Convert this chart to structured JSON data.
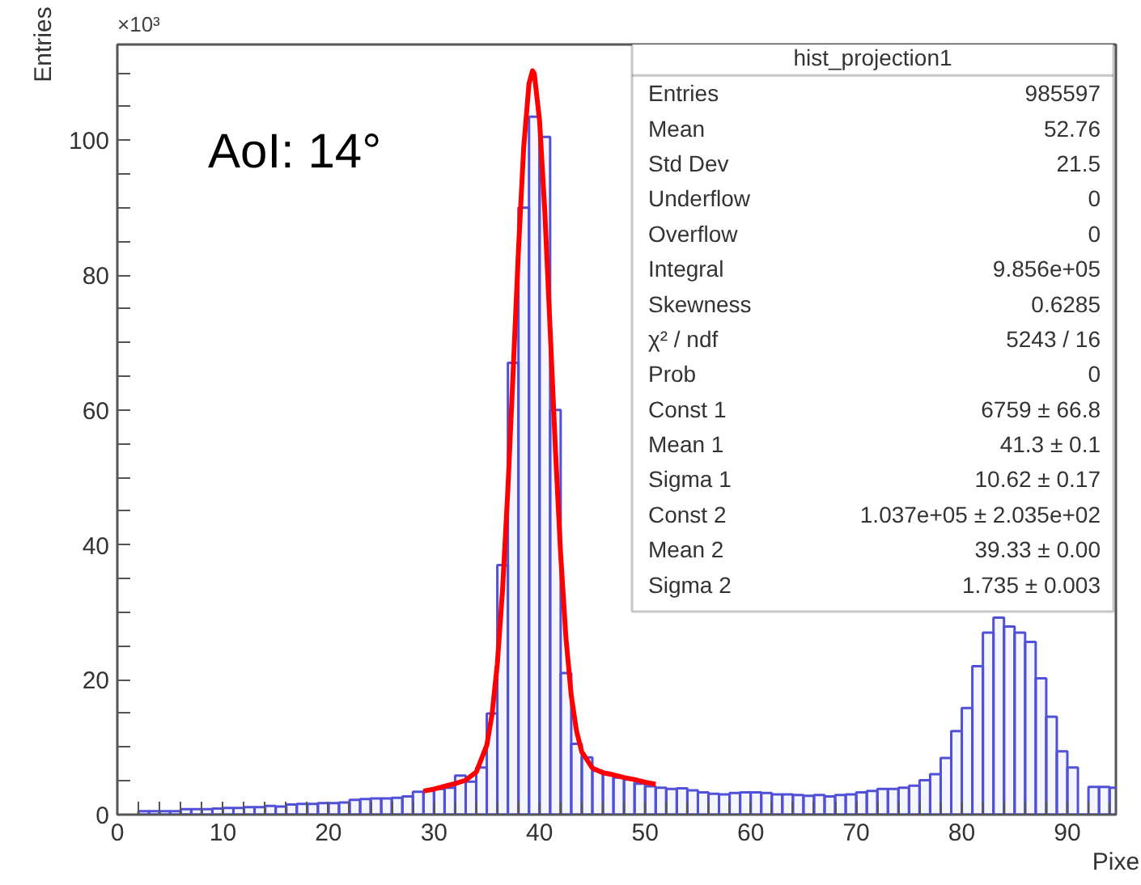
{
  "chart_data": {
    "type": "histogram",
    "xlabel": "Pixe",
    "ylabel": "Entries",
    "color": "#5050d8",
    "bins": [
      2,
      3,
      4,
      5,
      6,
      7,
      8,
      9,
      10,
      11,
      12,
      13,
      14,
      15,
      16,
      17,
      18,
      19,
      20,
      21,
      22,
      23,
      24,
      25,
      26,
      27,
      28,
      29,
      30,
      31,
      32,
      33,
      34,
      35,
      36,
      37,
      38,
      39,
      40,
      41,
      42,
      43,
      44,
      45,
      46,
      47,
      48,
      49,
      50,
      51,
      52,
      53,
      54,
      55,
      56,
      57,
      58,
      59,
      60,
      61,
      62,
      63,
      64,
      65,
      66,
      67,
      68,
      69,
      70,
      71,
      72,
      73,
      74,
      75,
      76,
      77,
      78,
      79,
      80,
      81,
      82,
      83,
      84,
      85,
      86,
      87,
      88,
      89,
      90,
      91,
      92,
      93,
      94,
      95
    ],
    "values": [
      0.5,
      0.5,
      0.5,
      0.5,
      0.8,
      0.8,
      0.8,
      0.9,
      1.0,
      1.0,
      1.1,
      1.1,
      1.3,
      1.2,
      1.5,
      1.6,
      1.6,
      1.7,
      1.7,
      1.8,
      2.2,
      2.3,
      2.4,
      2.4,
      2.5,
      2.7,
      3.4,
      3.5,
      3.8,
      4.0,
      5.8,
      4.9,
      7.0,
      15,
      37,
      67,
      90,
      103.5,
      100.5,
      60,
      21,
      10.5,
      8.5,
      6.5,
      6,
      5.5,
      5.2,
      4.6,
      4.2,
      4.0,
      3.8,
      3.9,
      3.6,
      3.3,
      3.1,
      3.0,
      3.2,
      3.3,
      3.3,
      3.2,
      3.0,
      3.0,
      2.9,
      2.8,
      2.9,
      2.7,
      2.9,
      3.0,
      3.3,
      3.5,
      3.8,
      3.8,
      4.0,
      4.3,
      5.1,
      6.0,
      8.4,
      12.4,
      15.8,
      22,
      27,
      29.2,
      27.9,
      27,
      25.6,
      20.2,
      14.5,
      9.4,
      7,
      0,
      4.1,
      4.1,
      4.0
    ],
    "series": [
      {
        "type": "line",
        "color": "#ff0000",
        "x": [
          29,
          30,
          31,
          32,
          33,
          34,
          35,
          35.5,
          36,
          36.5,
          37,
          37.5,
          38,
          38.5,
          39,
          39.33,
          39.5,
          40,
          40.5,
          41,
          41.5,
          42,
          42.5,
          43,
          43.5,
          44,
          45,
          46,
          47,
          48,
          49,
          50,
          51
        ],
        "values": [
          3.5,
          3.8,
          4.2,
          4.6,
          5.1,
          6.3,
          10.3,
          14.9,
          22.4,
          33.5,
          48.3,
          65.8,
          83.7,
          99.0,
          108.4,
          110.3,
          109.9,
          102.9,
          89.3,
          72.0,
          54.2,
          38.5,
          26.2,
          17.7,
          12.4,
          9.3,
          6.9,
          6.2,
          5.9,
          5.5,
          5.2,
          4.8,
          4.5
        ]
      }
    ],
    "xlim": [
      0,
      94.6
    ],
    "ylim": [
      0,
      114.2
    ],
    "xticks": [
      0,
      {
        "value": 2,
        "label": null
      },
      {
        "value": 4,
        "label": null
      },
      {
        "value": 6,
        "label": null
      },
      {
        "value": 8,
        "label": null
      },
      10,
      {
        "value": 12,
        "label": null
      },
      {
        "value": 14,
        "label": null
      },
      {
        "value": 16,
        "label": null
      },
      {
        "value": 18,
        "label": null
      },
      20,
      {
        "value": 22,
        "label": null
      },
      {
        "value": 24,
        "label": null
      },
      {
        "value": 26,
        "label": null
      },
      {
        "value": 28,
        "label": null
      },
      30,
      {
        "value": 32,
        "label": null
      },
      {
        "value": 34,
        "label": null
      },
      {
        "value": 36,
        "label": null
      },
      {
        "value": 38,
        "label": null
      },
      40,
      {
        "value": 42,
        "label": null
      },
      {
        "value": 44,
        "label": null
      },
      {
        "value": 46,
        "label": null
      },
      {
        "value": 48,
        "label": null
      },
      50,
      {
        "value": 52,
        "label": null
      },
      {
        "value": 54,
        "label": null
      },
      {
        "value": 56,
        "label": null
      },
      {
        "value": 58,
        "label": null
      },
      60,
      {
        "value": 62,
        "label": null
      },
      {
        "value": 64,
        "label": null
      },
      {
        "value": 66,
        "label": null
      },
      {
        "value": 68,
        "label": null
      },
      70,
      {
        "value": 72,
        "label": null
      },
      {
        "value": 74,
        "label": null
      },
      {
        "value": 76,
        "label": null
      },
      {
        "value": 78,
        "label": null
      },
      80,
      {
        "value": 82,
        "label": null
      },
      {
        "value": 84,
        "label": null
      },
      {
        "value": 86,
        "label": null
      },
      {
        "value": 88,
        "label": null
      },
      90,
      {
        "value": 92,
        "label": null
      },
      {
        "value": 94,
        "label": null
      }
    ],
    "yticks": [
      0,
      {
        "value": 5,
        "label": null
      },
      {
        "value": 10,
        "label": null
      },
      {
        "value": 15,
        "label": null
      },
      20,
      {
        "value": 25,
        "label": null
      },
      {
        "value": 30,
        "label": null
      },
      {
        "value": 35,
        "label": null
      },
      40,
      {
        "value": 45,
        "label": null
      },
      {
        "value": 50,
        "label": null
      },
      {
        "value": 55,
        "label": null
      },
      60,
      {
        "value": 65,
        "label": null
      },
      {
        "value": 70,
        "label": null
      },
      {
        "value": 75,
        "label": null
      },
      80,
      {
        "value": 85,
        "label": null
      },
      {
        "value": 90,
        "label": null
      },
      {
        "value": 95,
        "label": null
      },
      100,
      {
        "value": 105,
        "label": null
      },
      {
        "value": 110,
        "label": null
      }
    ],
    "annotations": [
      "×10³",
      "AoI: 14°",
      "hist_projection1",
      "Entries",
      "985597",
      "Mean",
      "52.76",
      "Std Dev",
      "21.5",
      "Underflow",
      "0",
      "Overflow",
      "0",
      "Integral",
      "9.856e+05",
      "Skewness",
      "0.6285",
      "χ² / ndf",
      "5243 / 16",
      "Prob",
      "0",
      "Const 1",
      "6759 ± 66.8",
      "Mean 1",
      "41.3 ± 0.1",
      "Sigma 1",
      "10.62 ± 0.17",
      "Const 2",
      "1.037e+05 ± 2.035e+02",
      "Mean 2",
      "39.33 ± 0.00",
      "Sigma 2",
      "1.735 ± 0.003"
    ]
  }
}
